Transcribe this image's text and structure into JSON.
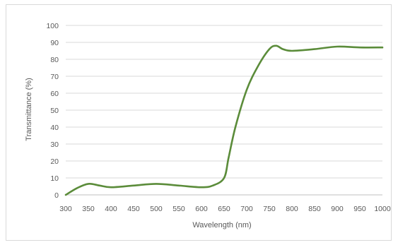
{
  "chart_data": {
    "type": "line",
    "title": "",
    "xlabel": "Wavelength (nm)",
    "ylabel": "Transmittance (%)",
    "xlim": [
      300,
      1000
    ],
    "ylim": [
      0,
      100
    ],
    "x_ticks": [
      300,
      350,
      400,
      450,
      500,
      550,
      600,
      650,
      700,
      750,
      800,
      850,
      900,
      950,
      1000
    ],
    "y_ticks": [
      0,
      10,
      20,
      30,
      40,
      50,
      60,
      70,
      80,
      90,
      100
    ],
    "grid": "horizontal",
    "legend": "none",
    "series": [
      {
        "color": "#5b8c3a",
        "x": [
          300,
          325,
          350,
          375,
          400,
          450,
          500,
          550,
          600,
          625,
          650,
          660,
          675,
          700,
          725,
          750,
          765,
          780,
          800,
          850,
          900,
          950,
          1000
        ],
        "y": [
          0,
          4,
          6.5,
          5.5,
          4.5,
          5.5,
          6.5,
          5.5,
          4.5,
          5.5,
          10,
          22,
          40,
          62,
          76,
          86,
          88,
          86,
          85,
          86,
          87.5,
          87,
          87
        ]
      }
    ]
  }
}
